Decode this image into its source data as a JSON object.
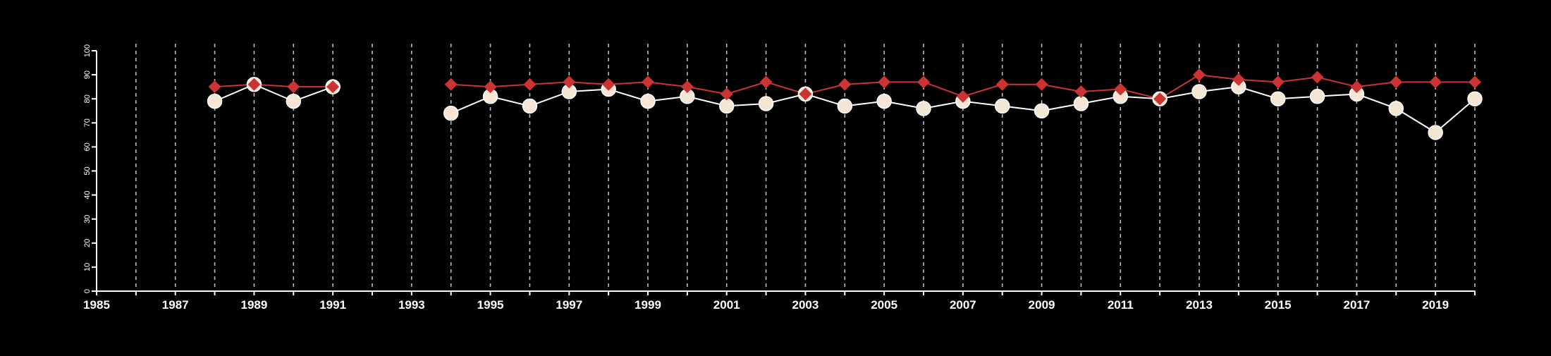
{
  "colors": {
    "background": "#000000",
    "axis": "#ffffff",
    "grid": "#bdbdbd",
    "series_circle_line": "#ffffff",
    "series_circle_fill": "#f5e6d3",
    "series_circle_stroke": "#ffffff",
    "series_diamond": "#cc3333"
  },
  "chart_data": {
    "type": "line",
    "title": "",
    "xlabel": "",
    "ylabel": "",
    "xlim": [
      1985,
      2020
    ],
    "ylim": [
      0,
      100
    ],
    "x_ticks": [
      1985,
      1987,
      1989,
      1991,
      1993,
      1995,
      1997,
      1999,
      2001,
      2003,
      2005,
      2007,
      2009,
      2011,
      2013,
      2015,
      2017,
      2019
    ],
    "y_ticks": [
      0,
      10,
      20,
      30,
      40,
      50,
      60,
      70,
      80,
      90,
      100
    ],
    "grid": {
      "vertical": "dashed, yearly",
      "horizontal": "none"
    },
    "legend": "none",
    "series": [
      {
        "marker": "circle",
        "color": "#f5e6d3",
        "points": [
          [
            1988,
            79
          ],
          [
            1989,
            86
          ],
          [
            1990,
            79
          ],
          [
            1991,
            85
          ],
          [
            1994,
            74
          ],
          [
            1995,
            81
          ],
          [
            1996,
            77
          ],
          [
            1997,
            83
          ],
          [
            1998,
            84
          ],
          [
            1999,
            79
          ],
          [
            2000,
            81
          ],
          [
            2001,
            77
          ],
          [
            2002,
            78
          ],
          [
            2003,
            82
          ],
          [
            2004,
            77
          ],
          [
            2005,
            79
          ],
          [
            2006,
            76
          ],
          [
            2007,
            79
          ],
          [
            2008,
            77
          ],
          [
            2009,
            75
          ],
          [
            2010,
            78
          ],
          [
            2011,
            81
          ],
          [
            2012,
            80
          ],
          [
            2013,
            83
          ],
          [
            2014,
            85
          ],
          [
            2015,
            80
          ],
          [
            2016,
            81
          ],
          [
            2017,
            82
          ],
          [
            2018,
            76
          ],
          [
            2019,
            66
          ],
          [
            2020,
            80
          ]
        ]
      },
      {
        "marker": "diamond",
        "color": "#cc3333",
        "points": [
          [
            1988,
            85
          ],
          [
            1989,
            86
          ],
          [
            1990,
            85
          ],
          [
            1991,
            85
          ],
          [
            1994,
            86
          ],
          [
            1995,
            85
          ],
          [
            1996,
            86
          ],
          [
            1997,
            87
          ],
          [
            1998,
            86
          ],
          [
            1999,
            87
          ],
          [
            2000,
            85
          ],
          [
            2001,
            82
          ],
          [
            2002,
            87
          ],
          [
            2003,
            82
          ],
          [
            2004,
            86
          ],
          [
            2005,
            87
          ],
          [
            2006,
            87
          ],
          [
            2007,
            81
          ],
          [
            2008,
            86
          ],
          [
            2009,
            86
          ],
          [
            2010,
            83
          ],
          [
            2011,
            84
          ],
          [
            2012,
            80
          ],
          [
            2013,
            90
          ],
          [
            2014,
            88
          ],
          [
            2015,
            87
          ],
          [
            2016,
            89
          ],
          [
            2017,
            85
          ],
          [
            2018,
            87
          ],
          [
            2019,
            87
          ],
          [
            2020,
            87
          ]
        ]
      }
    ]
  }
}
